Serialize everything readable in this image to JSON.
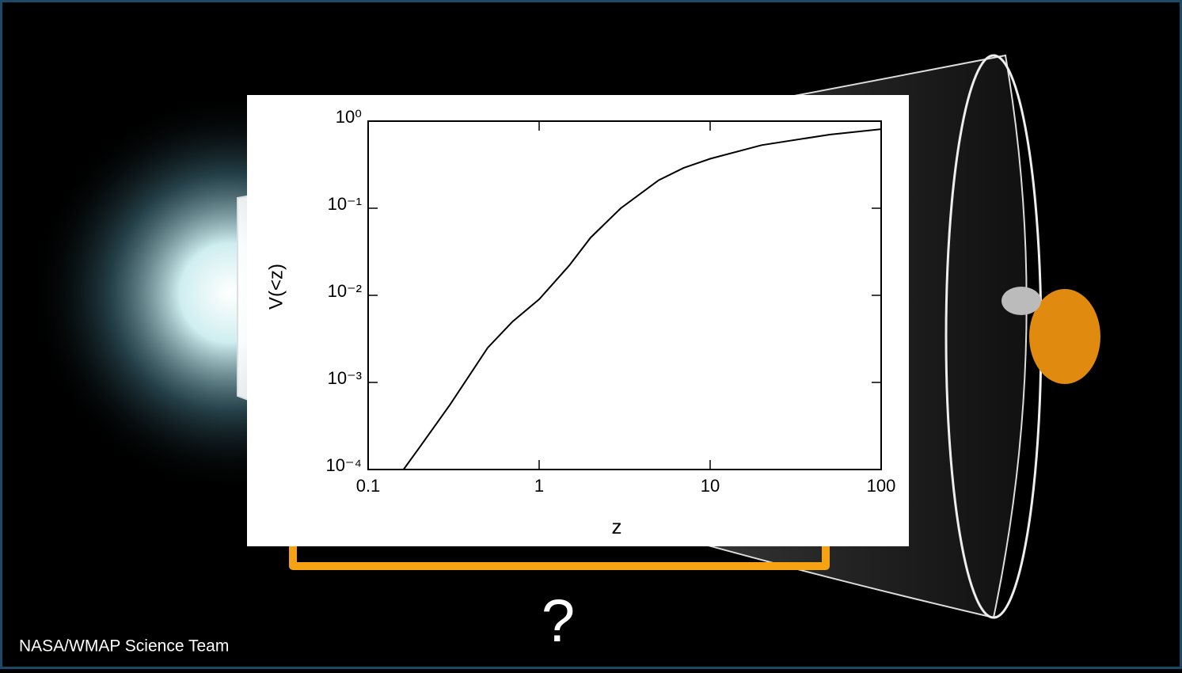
{
  "chart_data": {
    "type": "line",
    "x_label": "z",
    "y_label": "V(<z)",
    "x": [
      0.161,
      0.2,
      0.3,
      0.5,
      0.7,
      1,
      1.5,
      2,
      3,
      5,
      7,
      10,
      20,
      50,
      100
    ],
    "values": [
      0.0001,
      0.00018,
      0.00055,
      0.0025,
      0.005,
      0.009,
      0.022,
      0.046,
      0.1,
      0.21,
      0.29,
      0.37,
      0.53,
      0.7,
      0.81
    ],
    "color": "#000000",
    "xlim": [
      0.1,
      100
    ],
    "ylim": [
      0.0001,
      1
    ],
    "xscale": "log",
    "yscale": "log",
    "xticks": [
      0.1,
      1,
      10,
      100
    ],
    "yticks": [
      {
        "value": 0.0001,
        "label": "10⁻⁴"
      },
      {
        "value": 0.001,
        "label": "10⁻³"
      },
      {
        "value": 0.01,
        "label": "10⁻²"
      },
      {
        "value": 0.1,
        "label": "10⁻¹"
      },
      {
        "value": 1,
        "label": "10⁰"
      }
    ],
    "annotations": [
      "?",
      "NASA/WMAP Science Team"
    ]
  }
}
